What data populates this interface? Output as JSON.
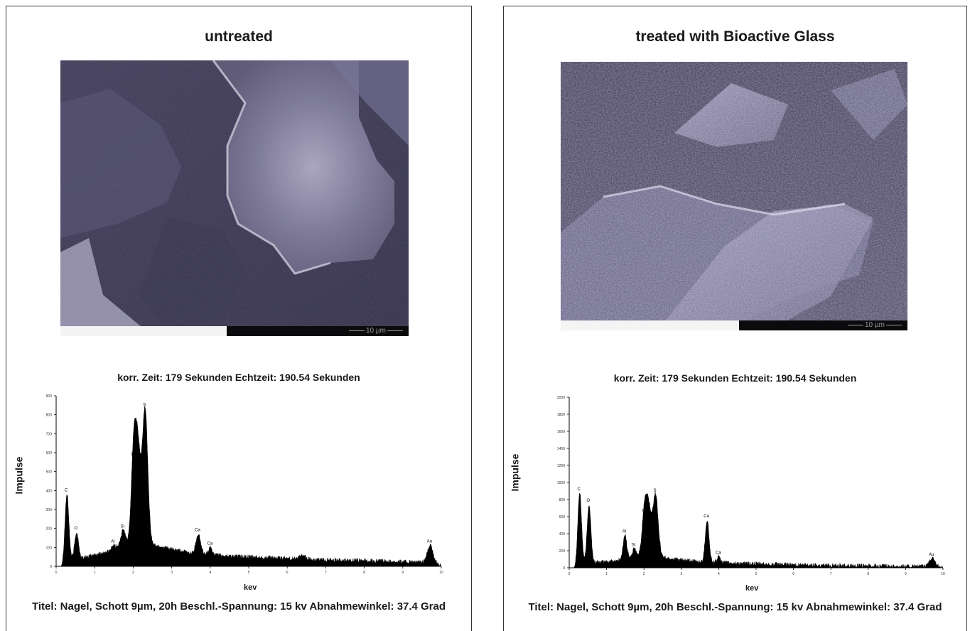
{
  "panels": [
    {
      "title": "untreated",
      "scale_label": "10 µm",
      "time_caption": "korr. Zeit: 179 Sekunden   Echtzeit: 190.54 Sekunden",
      "footer": "Titel: Nagel, Schott 9µm, 20h   Beschl.-Spannung: 15 kv   Abnahmewinkel: 37.4 Grad",
      "ylabel": "Impulse",
      "xlabel": "kev",
      "colors": {
        "image_tone": "#5a5570",
        "spectrum": "#000000"
      }
    },
    {
      "title": "treated with Bioactive Glass",
      "scale_label": "10 µm",
      "time_caption": "korr. Zeit: 179 Sekunden   Echtzeit: 190.54 Sekunden",
      "footer": "Titel: Nagel, Schott 9µm, 20h   Beschl.-Spannung: 15 kv   Abnahmewinkel: 37.4 Grad",
      "ylabel": "Impulse",
      "xlabel": "kev",
      "colors": {
        "image_tone": "#6a6688",
        "spectrum": "#000000"
      }
    }
  ],
  "chart_data": [
    {
      "type": "area",
      "ylabel": "Impulse",
      "xlabel": "kev",
      "xlim": [
        0,
        10
      ],
      "ylim": [
        0,
        900
      ],
      "xticks": [
        "0",
        "1",
        "2",
        "3",
        "4",
        "5",
        "6",
        "7",
        "8",
        "9",
        "10"
      ],
      "yticks": [
        "0",
        "100",
        "200",
        "300",
        "400",
        "500",
        "600",
        "700",
        "800",
        "900"
      ],
      "baseline": [
        {
          "x": 0.12,
          "y": 0
        },
        {
          "x": 0.3,
          "y": 30
        },
        {
          "x": 0.6,
          "y": 40
        },
        {
          "x": 1.0,
          "y": 60
        },
        {
          "x": 1.3,
          "y": 75
        },
        {
          "x": 1.5,
          "y": 95
        },
        {
          "x": 1.9,
          "y": 120
        },
        {
          "x": 2.6,
          "y": 110
        },
        {
          "x": 3.0,
          "y": 90
        },
        {
          "x": 3.5,
          "y": 70
        },
        {
          "x": 4.0,
          "y": 60
        },
        {
          "x": 4.5,
          "y": 55
        },
        {
          "x": 5.0,
          "y": 50
        },
        {
          "x": 6.0,
          "y": 42
        },
        {
          "x": 7.0,
          "y": 35
        },
        {
          "x": 8.0,
          "y": 30
        },
        {
          "x": 9.0,
          "y": 25
        },
        {
          "x": 9.9,
          "y": 15
        },
        {
          "x": 10.0,
          "y": 0
        }
      ],
      "peaks": [
        {
          "label": "C",
          "x": 0.28,
          "y": 380,
          "w": 0.05
        },
        {
          "label": "O",
          "x": 0.53,
          "y": 180,
          "w": 0.05
        },
        {
          "label": "Al",
          "x": 1.49,
          "y": 110,
          "w": 0.05
        },
        {
          "label": "Si",
          "x": 1.74,
          "y": 190,
          "w": 0.06
        },
        {
          "label": "P",
          "x": 2.01,
          "y": 570,
          "w": 0.06
        },
        {
          "label": "Au",
          "x": 2.12,
          "y": 620,
          "w": 0.07
        },
        {
          "label": "S",
          "x": 2.31,
          "y": 830,
          "w": 0.07
        },
        {
          "label": "Ca",
          "x": 3.69,
          "y": 170,
          "w": 0.06
        },
        {
          "label": "Ca",
          "x": 4.01,
          "y": 100,
          "w": 0.05
        },
        {
          "label": "",
          "x": 6.4,
          "y": 60,
          "w": 0.07
        },
        {
          "label": "Au",
          "x": 9.71,
          "y": 110,
          "w": 0.07
        }
      ]
    },
    {
      "type": "area",
      "ylabel": "Impulse",
      "xlabel": "kev",
      "xlim": [
        0,
        10
      ],
      "ylim": [
        0,
        2000
      ],
      "xticks": [
        "0",
        "1",
        "2",
        "3",
        "4",
        "5",
        "6",
        "7",
        "8",
        "9",
        "10"
      ],
      "yticks": [
        "0",
        "200",
        "400",
        "600",
        "800",
        "1000",
        "1200",
        "1400",
        "1600",
        "1800",
        "2000"
      ],
      "baseline": [
        {
          "x": 0.12,
          "y": 0
        },
        {
          "x": 0.3,
          "y": 40
        },
        {
          "x": 0.6,
          "y": 60
        },
        {
          "x": 1.0,
          "y": 70
        },
        {
          "x": 1.4,
          "y": 90
        },
        {
          "x": 1.9,
          "y": 140
        },
        {
          "x": 2.5,
          "y": 120
        },
        {
          "x": 3.0,
          "y": 90
        },
        {
          "x": 3.5,
          "y": 70
        },
        {
          "x": 4.0,
          "y": 60
        },
        {
          "x": 5.0,
          "y": 45
        },
        {
          "x": 6.0,
          "y": 35
        },
        {
          "x": 7.0,
          "y": 28
        },
        {
          "x": 8.0,
          "y": 22
        },
        {
          "x": 9.0,
          "y": 18
        },
        {
          "x": 9.9,
          "y": 10
        },
        {
          "x": 10.0,
          "y": 0
        }
      ],
      "peaks": [
        {
          "label": "C",
          "x": 0.28,
          "y": 880,
          "w": 0.05
        },
        {
          "label": "O",
          "x": 0.53,
          "y": 740,
          "w": 0.05
        },
        {
          "label": "Al",
          "x": 1.49,
          "y": 380,
          "w": 0.05
        },
        {
          "label": "Si",
          "x": 1.74,
          "y": 220,
          "w": 0.05
        },
        {
          "label": "P",
          "x": 2.01,
          "y": 620,
          "w": 0.06
        },
        {
          "label": "Au",
          "x": 2.12,
          "y": 700,
          "w": 0.07
        },
        {
          "label": "S",
          "x": 2.31,
          "y": 860,
          "w": 0.07
        },
        {
          "label": "Ca",
          "x": 3.69,
          "y": 560,
          "w": 0.05
        },
        {
          "label": "Ca",
          "x": 4.01,
          "y": 130,
          "w": 0.05
        },
        {
          "label": "Au",
          "x": 9.71,
          "y": 110,
          "w": 0.07
        }
      ]
    }
  ]
}
